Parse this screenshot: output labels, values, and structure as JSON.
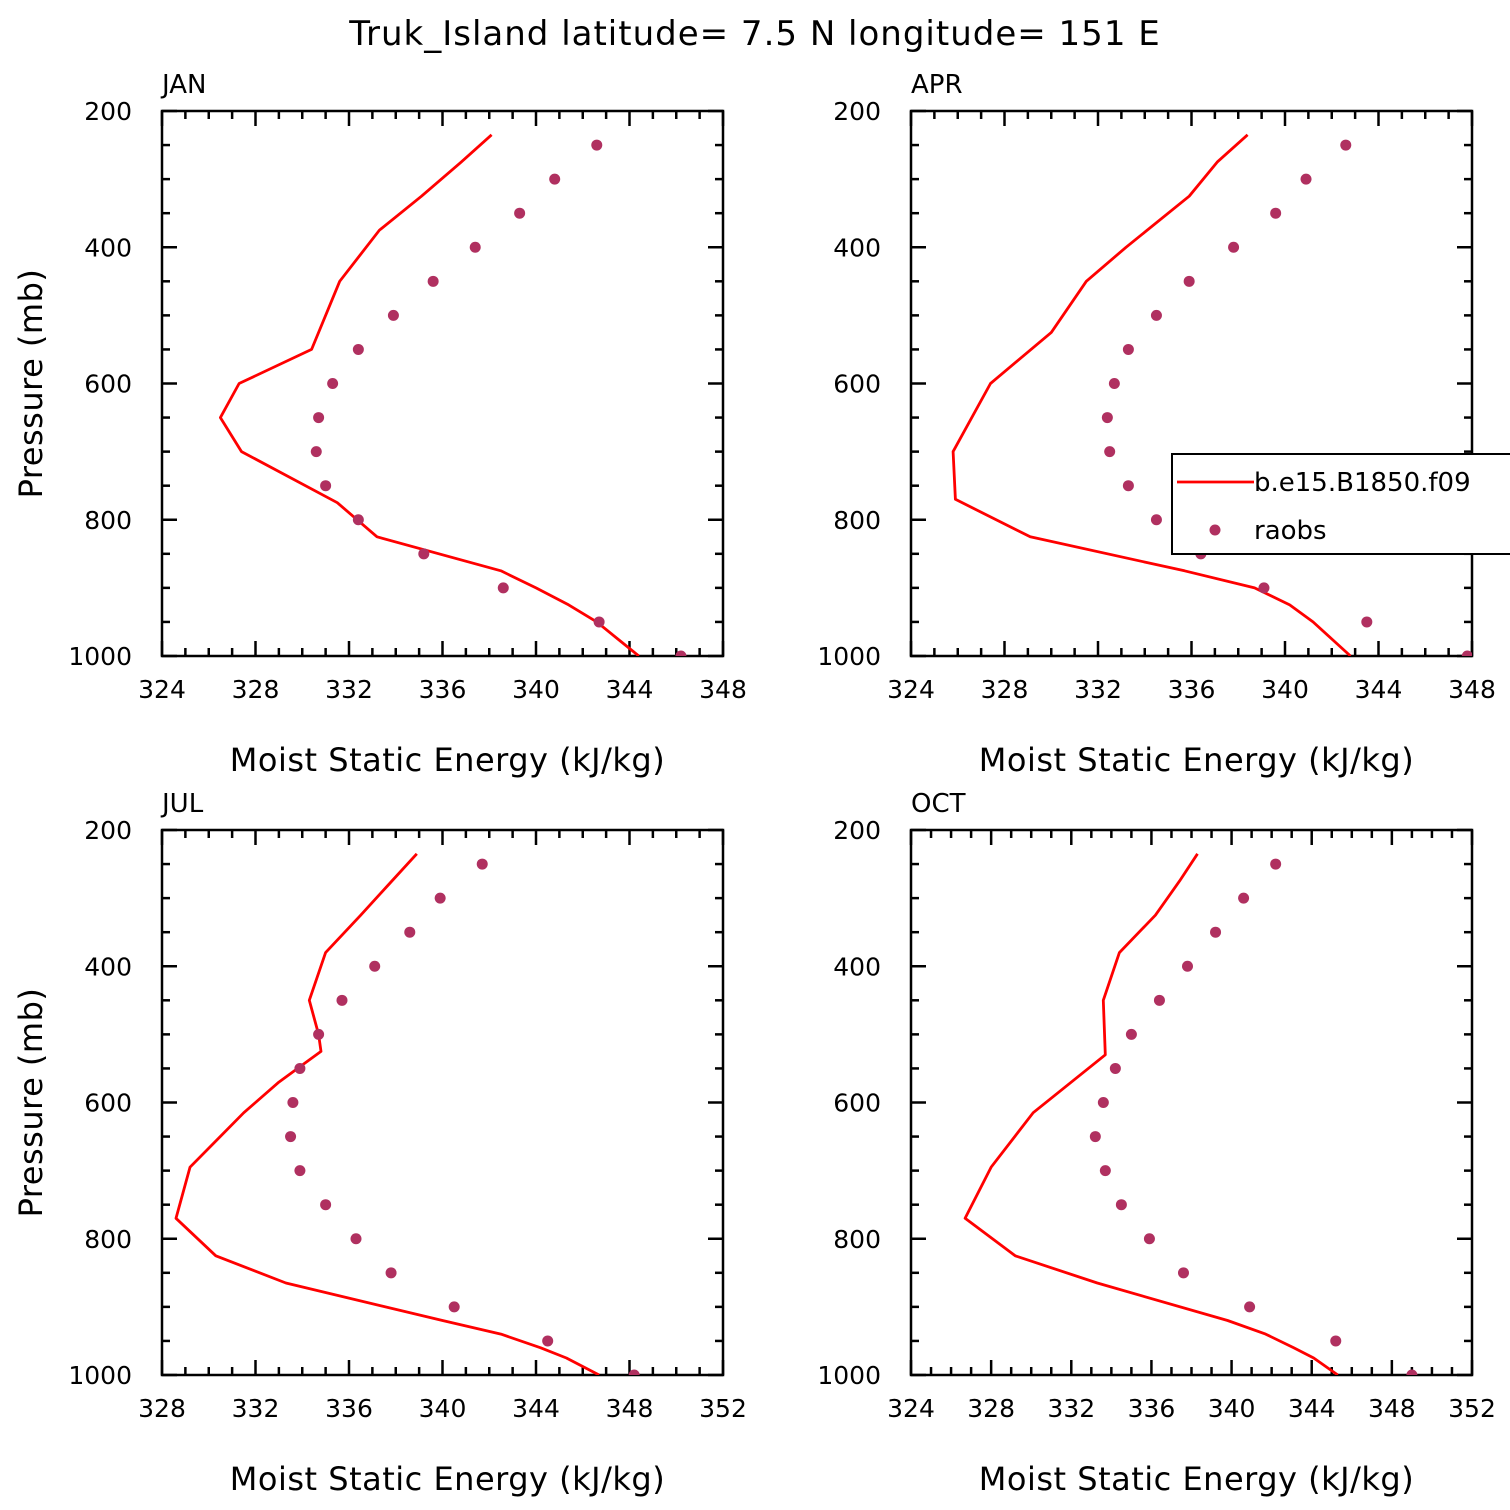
{
  "figure": {
    "title": "Truk_Island  latitude= 7.5 N longitude= 151 E"
  },
  "colors": {
    "model_line": "#ff0000",
    "raobs_marker": "#b03060",
    "axes": "#000000"
  },
  "legend": {
    "items": [
      {
        "label": "b.e15.B1850.f09",
        "kind": "line"
      },
      {
        "label": "raobs",
        "kind": "marker"
      }
    ],
    "panel": "APR",
    "placement": "right, partly clipped at figure edge"
  },
  "chart_data": [
    {
      "type": "line",
      "panel_title": "JAN",
      "xlabel": "Moist Static Energy (kJ/kg)",
      "ylabel": "Pressure (mb)",
      "xlim": [
        324,
        348
      ],
      "xticks": [
        324,
        328,
        332,
        336,
        340,
        344,
        348
      ],
      "ylim": [
        1000,
        200
      ],
      "yticks": [
        200,
        400,
        600,
        800,
        1000
      ],
      "y_inverted": true,
      "series": [
        {
          "name": "b.e15.B1850.f09",
          "style": "line",
          "x": [
            344.4,
            343.5,
            342.6,
            341.4,
            340.0,
            338.5,
            333.2,
            331.5,
            327.4,
            326.5,
            327.3,
            330.4,
            331.6,
            333.3,
            335.1,
            336.8,
            338.1
          ],
          "y": [
            1000,
            975,
            950,
            925,
            900,
            875,
            825,
            775,
            700,
            650,
            600,
            550,
            450,
            375,
            325,
            275,
            235
          ]
        },
        {
          "name": "raobs",
          "style": "marker",
          "x": [
            346.2,
            342.7,
            338.6,
            335.2,
            332.4,
            331.0,
            330.6,
            330.7,
            331.3,
            332.4,
            333.9,
            335.6,
            337.4,
            339.3,
            340.8,
            342.6
          ],
          "y": [
            1000,
            950,
            900,
            850,
            800,
            750,
            700,
            650,
            600,
            550,
            500,
            450,
            400,
            350,
            300,
            250
          ]
        }
      ]
    },
    {
      "type": "line",
      "panel_title": "APR",
      "xlabel": "Moist Static Energy (kJ/kg)",
      "ylabel": "",
      "xlim": [
        324,
        348
      ],
      "xticks": [
        324,
        328,
        332,
        336,
        340,
        344,
        348
      ],
      "ylim": [
        1000,
        200
      ],
      "yticks": [
        200,
        400,
        600,
        800,
        1000
      ],
      "y_inverted": true,
      "series": [
        {
          "name": "b.e15.B1850.f09",
          "style": "line",
          "x": [
            342.8,
            342.0,
            341.2,
            340.2,
            338.7,
            335.7,
            329.1,
            325.9,
            325.8,
            327.4,
            330.0,
            331.5,
            333.2,
            335.9,
            337.1,
            338.4
          ],
          "y": [
            1000,
            975,
            950,
            925,
            900,
            875,
            825,
            770,
            700,
            600,
            525,
            450,
            400,
            325,
            275,
            235
          ]
        },
        {
          "name": "raobs",
          "style": "marker",
          "x": [
            347.8,
            343.5,
            339.1,
            336.4,
            334.5,
            333.3,
            332.5,
            332.4,
            332.7,
            333.3,
            334.5,
            335.9,
            337.8,
            339.6,
            340.9,
            342.6
          ],
          "y": [
            1000,
            950,
            900,
            850,
            800,
            750,
            700,
            650,
            600,
            550,
            500,
            450,
            400,
            350,
            300,
            250
          ]
        }
      ]
    },
    {
      "type": "line",
      "panel_title": "JUL",
      "xlabel": "Moist Static Energy (kJ/kg)",
      "ylabel": "Pressure (mb)",
      "xlim": [
        328,
        352
      ],
      "xticks": [
        328,
        332,
        336,
        340,
        344,
        348,
        352
      ],
      "ylim": [
        1000,
        200
      ],
      "yticks": [
        200,
        400,
        600,
        800,
        1000
      ],
      "y_inverted": true,
      "series": [
        {
          "name": "b.e15.B1850.f09",
          "style": "line",
          "x": [
            346.7,
            345.3,
            344.2,
            342.5,
            340.0,
            333.3,
            330.3,
            328.6,
            329.2,
            331.5,
            333.0,
            334.0,
            334.8,
            334.7,
            334.3,
            335.0,
            336.5,
            337.7,
            338.9
          ],
          "y": [
            1000,
            975,
            960,
            940,
            920,
            865,
            825,
            770,
            695,
            615,
            570,
            545,
            525,
            500,
            450,
            380,
            325,
            280,
            235
          ]
        },
        {
          "name": "raobs",
          "style": "marker",
          "x": [
            348.2,
            344.5,
            340.5,
            337.8,
            336.3,
            335.0,
            333.9,
            333.5,
            333.6,
            333.9,
            334.7,
            335.7,
            337.1,
            338.6,
            339.9,
            341.7
          ],
          "y": [
            1000,
            950,
            900,
            850,
            800,
            750,
            700,
            650,
            600,
            550,
            500,
            450,
            400,
            350,
            300,
            250
          ]
        }
      ]
    },
    {
      "type": "line",
      "panel_title": "OCT",
      "xlabel": "Moist Static Energy (kJ/kg)",
      "ylabel": "",
      "xlim": [
        324,
        352
      ],
      "xticks": [
        324,
        328,
        332,
        336,
        340,
        344,
        348,
        352
      ],
      "ylim": [
        1000,
        200
      ],
      "yticks": [
        200,
        400,
        600,
        800,
        1000
      ],
      "y_inverted": true,
      "series": [
        {
          "name": "b.e15.B1850.f09",
          "style": "line",
          "x": [
            345.3,
            344.1,
            343.1,
            341.7,
            339.8,
            333.3,
            329.2,
            326.7,
            328.0,
            330.1,
            333.7,
            333.6,
            334.4,
            336.2,
            337.4,
            338.3
          ],
          "y": [
            1000,
            975,
            960,
            940,
            920,
            865,
            825,
            770,
            695,
            615,
            530,
            450,
            380,
            325,
            275,
            235
          ]
        },
        {
          "name": "raobs",
          "style": "marker",
          "x": [
            349.0,
            345.2,
            340.9,
            337.6,
            335.9,
            334.5,
            333.7,
            333.2,
            333.6,
            334.2,
            335.0,
            336.4,
            337.8,
            339.2,
            340.6,
            342.2
          ],
          "y": [
            1000,
            950,
            900,
            850,
            800,
            750,
            700,
            650,
            600,
            550,
            500,
            450,
            400,
            350,
            300,
            250
          ]
        }
      ]
    }
  ]
}
